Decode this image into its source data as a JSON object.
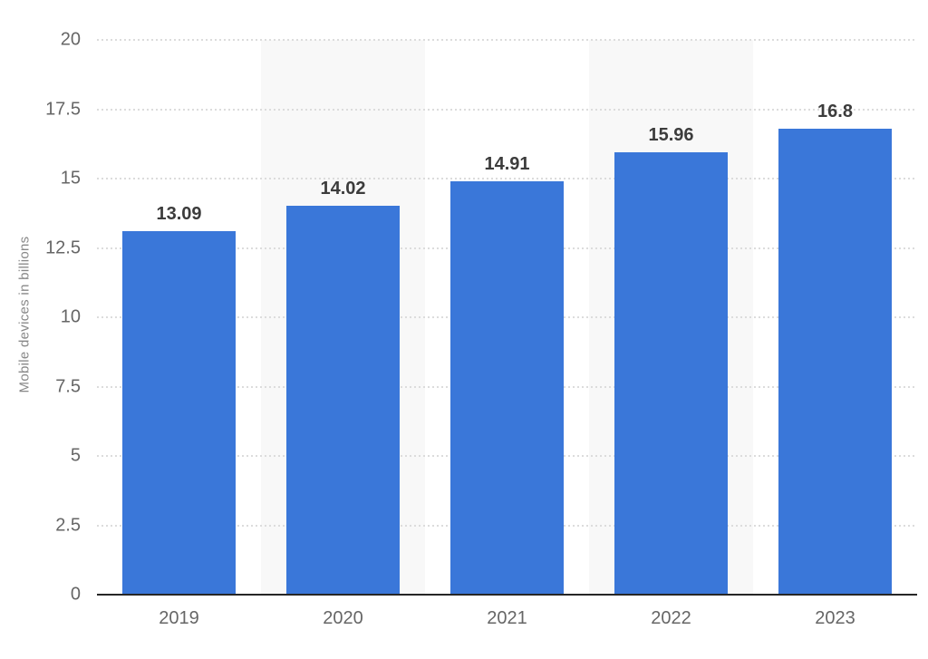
{
  "chart_data": {
    "type": "bar",
    "title": "",
    "xlabel": "",
    "ylabel": "Mobile devices in billions",
    "categories": [
      "2019",
      "2020",
      "2021",
      "2022",
      "2023"
    ],
    "values": [
      13.09,
      14.02,
      14.91,
      15.96,
      16.8
    ],
    "value_labels": [
      "13.09",
      "14.02",
      "14.91",
      "15.96",
      "16.8"
    ],
    "ylim": [
      0,
      20
    ],
    "yticks": [
      0,
      2.5,
      5,
      7.5,
      10,
      12.5,
      15,
      17.5,
      20
    ],
    "ytick_labels": [
      "0",
      "2.5",
      "5",
      "7.5",
      "10",
      "12.5",
      "15",
      "17.5",
      "20"
    ],
    "grid": "horizontal-dotted",
    "legend_position": "none",
    "striped_categories": [
      "2020",
      "2022"
    ]
  },
  "colors": {
    "bar": "#3A77D9",
    "gridline": "#dcdcdc",
    "axis_line": "#262626",
    "tick_label": "#666666",
    "x_label": "#666666",
    "value_label": "#3c3c3c",
    "axis_title": "#888888",
    "plot_band": "#f8f8f8",
    "background": "#ffffff"
  }
}
